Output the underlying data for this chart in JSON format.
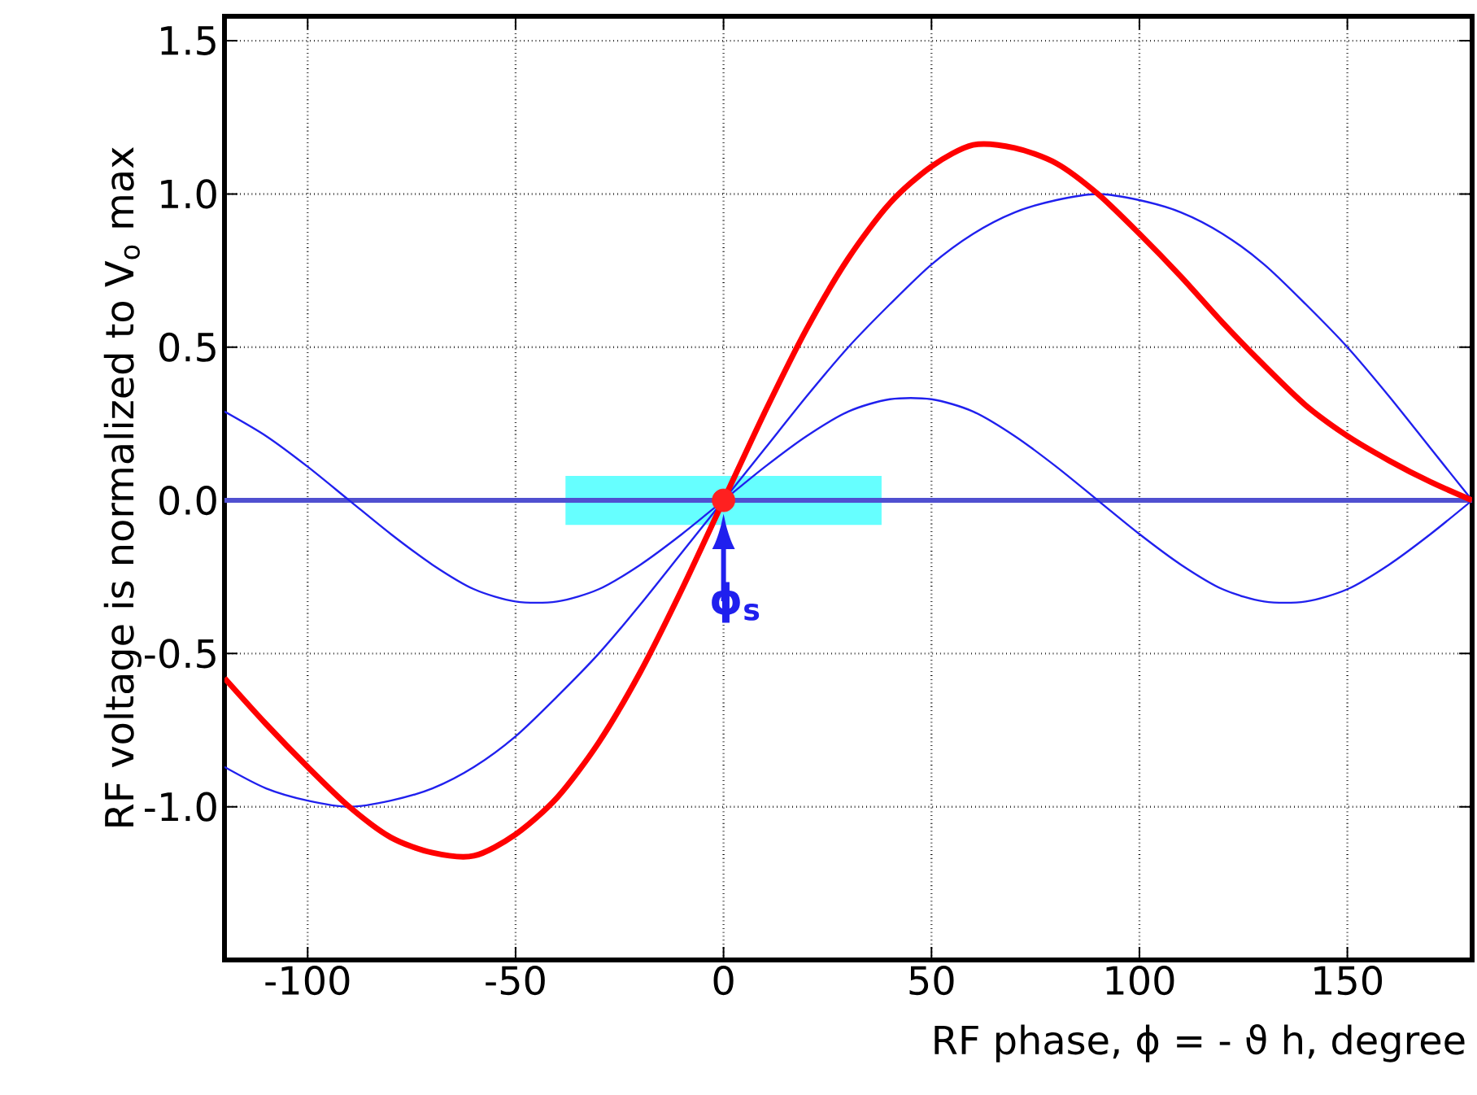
{
  "chart_data": {
    "type": "line",
    "xlabel": "RF phase,  ϕ = - ϑ h,    degree",
    "ylabel": "RF voltage is normalized to  V$_{o}$ max",
    "x": [
      -120,
      -110,
      -100,
      -90,
      -80,
      -70,
      -60,
      -50,
      -40,
      -30,
      -20,
      -10,
      0,
      10,
      20,
      30,
      40,
      50,
      60,
      70,
      80,
      90,
      100,
      110,
      120,
      130,
      140,
      150,
      160,
      170,
      180
    ],
    "series": [
      {
        "color": "#2020ee",
        "values": [
          0.29,
          0.21,
          0.11,
          0,
          -0.11,
          -0.21,
          -0.29,
          -0.33,
          -0.33,
          -0.29,
          -0.21,
          -0.11,
          0,
          0.11,
          0.21,
          0.29,
          0.33,
          0.33,
          0.29,
          0.21,
          0.11,
          0,
          -0.11,
          -0.21,
          -0.29,
          -0.33,
          -0.33,
          -0.29,
          -0.21,
          -0.11,
          0
        ]
      },
      {
        "color": "#2020ee",
        "values": [
          -0.87,
          -0.94,
          -0.98,
          -1.0,
          -0.98,
          -0.94,
          -0.87,
          -0.77,
          -0.64,
          -0.5,
          -0.34,
          -0.17,
          0,
          0.17,
          0.34,
          0.5,
          0.64,
          0.77,
          0.87,
          0.94,
          0.98,
          1.0,
          0.98,
          0.94,
          0.87,
          0.77,
          0.64,
          0.5,
          0.34,
          0.17,
          0
        ]
      },
      {
        "color": "#ff0000",
        "values": [
          -0.58,
          -0.73,
          -0.87,
          -1.0,
          -1.1,
          -1.15,
          -1.16,
          -1.09,
          -0.97,
          -0.79,
          -0.56,
          -0.29,
          0,
          0.29,
          0.56,
          0.79,
          0.97,
          1.09,
          1.16,
          1.15,
          1.1,
          1.0,
          0.87,
          0.73,
          0.58,
          0.44,
          0.31,
          0.21,
          0.13,
          0.06,
          0
        ]
      },
      {
        "type": "scatter",
        "marker": "circle",
        "color": "#ff2020",
        "x": [
          0
        ],
        "values": [
          0
        ]
      }
    ],
    "xlim": [
      -120,
      180
    ],
    "ylim": [
      -1.5,
      1.58
    ],
    "xticks": [
      -100,
      -50,
      0,
      50,
      100,
      150
    ],
    "yticks": [
      {
        "value": -1.0,
        "label": "-1.0"
      },
      {
        "value": -0.5,
        "label": "-0.5"
      },
      {
        "value": 0,
        "label": "0.0"
      },
      {
        "value": 0.5,
        "label": "0.5"
      },
      {
        "value": 1.0,
        "label": "1.0"
      },
      {
        "value": 1.5,
        "label": "1.5"
      }
    ],
    "grid": true,
    "ref_lines": [
      {
        "axis": "y",
        "value": 0,
        "color": "#5050d0"
      }
    ],
    "bands": [
      {
        "axis": "x",
        "from": -38,
        "to": 38,
        "color": "#66ffff"
      }
    ],
    "annotations": [
      {
        "text": "ϕ$_{s}$",
        "x": 0,
        "y": 0
      }
    ]
  }
}
